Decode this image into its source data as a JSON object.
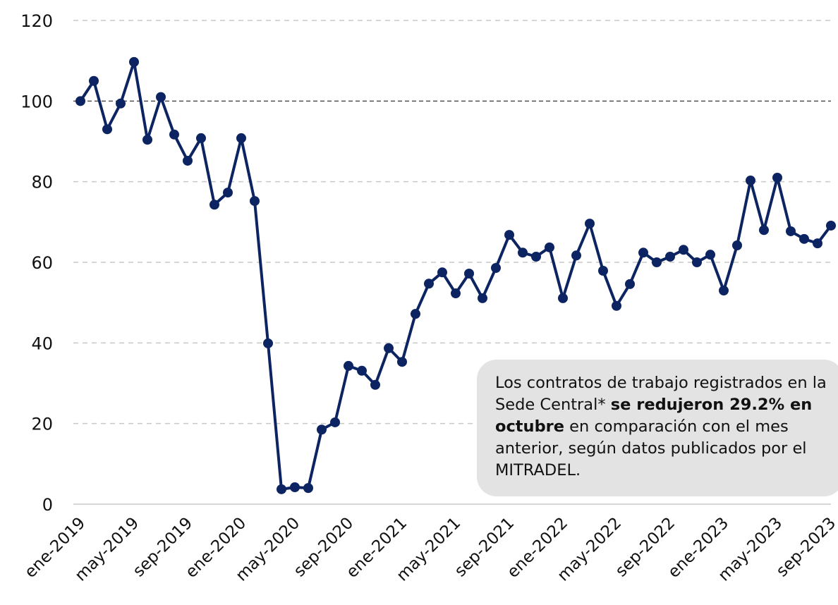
{
  "chart_data": {
    "type": "line",
    "categories": [
      "ene-2019",
      null,
      null,
      null,
      "may-2019",
      null,
      null,
      null,
      "sep-2019",
      null,
      null,
      null,
      "ene-2020",
      null,
      null,
      null,
      "may-2020",
      null,
      null,
      null,
      "sep-2020",
      null,
      null,
      null,
      "ene-2021",
      null,
      null,
      null,
      "may-2021",
      null,
      null,
      null,
      "sep-2021",
      null,
      null,
      null,
      "ene-2022",
      null,
      null,
      null,
      "may-2022",
      null,
      null,
      null,
      "sep-2022",
      null,
      null,
      null,
      "ene-2023",
      null,
      null,
      null,
      "may-2023",
      null,
      null,
      null,
      "sep-2023"
    ],
    "series": [
      {
        "color": "#0c2461",
        "values": [
          100,
          105,
          93,
          99.4,
          109.7,
          90.4,
          101,
          91.7,
          85.2,
          90.8,
          74.3,
          77.3,
          90.8,
          75.2,
          39.9,
          3.7,
          4.2,
          4.0,
          18.5,
          20.3,
          34.3,
          33.1,
          29.6,
          38.7,
          35.3,
          47.2,
          54.7,
          57.5,
          52.3,
          57.2,
          51.1,
          58.6,
          66.8,
          62.4,
          61.4,
          63.7,
          51.1,
          61.7,
          69.6,
          57.9,
          49.2,
          54.6,
          62.4,
          60.0,
          61.4,
          63.1,
          60.0,
          61.9,
          53.0,
          64.2,
          80.3,
          68.0,
          81.0,
          67.7,
          65.8,
          64.7,
          69.1
        ]
      }
    ],
    "ylim": [
      0,
      120
    ],
    "yticks": [
      0,
      20,
      40,
      60,
      80,
      100,
      120
    ],
    "grid": true,
    "reference_line": 100,
    "annotation": [
      {
        "text": "Los contratos de trabajo registrados en la Sede Central* ",
        "bold": false
      },
      {
        "text": "se redujeron 29.2% en octubre",
        "bold": true
      },
      {
        "text": " en comparación con el mes anterior, según datos publicados por el MITRADEL.",
        "bold": false
      }
    ]
  }
}
